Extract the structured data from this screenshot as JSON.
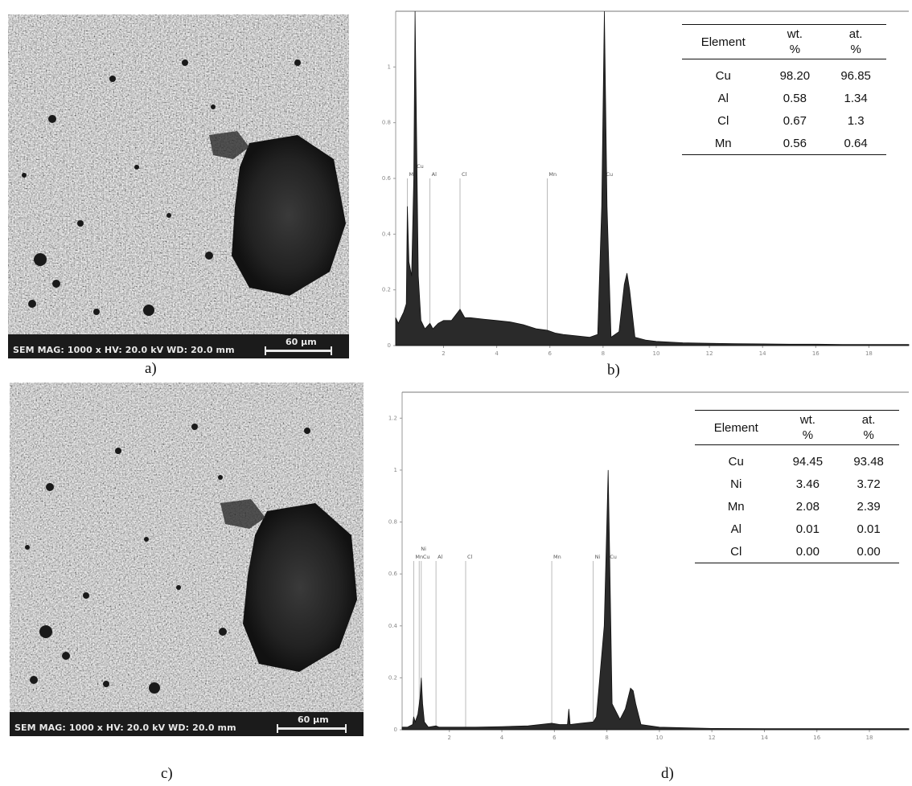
{
  "panels": {
    "a": {
      "caption": "a)",
      "info": "SEM  MAG: 1000 x  HV: 20.0 kV  WD: 20.0 mm",
      "scale": "60 µm"
    },
    "b": {
      "caption": "b)"
    },
    "c": {
      "caption": "c)",
      "info": "SEM  MAG: 1000 x  HV: 20.0 kV  WD: 20.0 mm",
      "scale": "60 µm"
    },
    "d": {
      "caption": "d)"
    }
  },
  "chart_data": [
    {
      "type": "line",
      "panel": "b",
      "x_ticks": [
        2,
        4,
        6,
        8,
        10,
        12,
        14,
        16,
        18
      ],
      "y_ticks": [
        0.0,
        0.2,
        0.4,
        0.6,
        0.8,
        1.0
      ],
      "xlim": [
        0.2,
        19.5
      ],
      "ylim": [
        0,
        1.2
      ],
      "element_markers": [
        {
          "label": "Mn",
          "x": 0.64
        },
        {
          "label": "Cu",
          "x": 0.93
        },
        {
          "label": "Al",
          "x": 1.49
        },
        {
          "label": "Cl",
          "x": 2.62
        },
        {
          "label": "Mn",
          "x": 5.9
        },
        {
          "label": "Cu",
          "x": 8.05
        }
      ],
      "spectrum": {
        "x": [
          0.2,
          0.3,
          0.4,
          0.5,
          0.6,
          0.64,
          0.7,
          0.8,
          0.88,
          0.93,
          0.98,
          1.05,
          1.15,
          1.3,
          1.49,
          1.6,
          1.8,
          2.0,
          2.3,
          2.62,
          2.8,
          3.0,
          3.5,
          4.0,
          4.5,
          5.0,
          5.5,
          5.9,
          6.2,
          6.5,
          7.0,
          7.5,
          7.8,
          7.95,
          8.05,
          8.15,
          8.3,
          8.6,
          8.8,
          8.9,
          9.0,
          9.2,
          9.6,
          10.0,
          11.0,
          12.0,
          13.0,
          14.0,
          15.0,
          16.0,
          17.0,
          18.0,
          19.0,
          19.5
        ],
        "y": [
          0.1,
          0.08,
          0.1,
          0.12,
          0.15,
          0.5,
          0.3,
          0.25,
          0.6,
          1.25,
          0.8,
          0.25,
          0.09,
          0.06,
          0.08,
          0.06,
          0.08,
          0.09,
          0.09,
          0.13,
          0.1,
          0.1,
          0.095,
          0.09,
          0.085,
          0.075,
          0.06,
          0.055,
          0.045,
          0.04,
          0.035,
          0.03,
          0.04,
          0.5,
          1.25,
          0.5,
          0.03,
          0.05,
          0.22,
          0.26,
          0.2,
          0.03,
          0.02,
          0.015,
          0.01,
          0.008,
          0.007,
          0.006,
          0.005,
          0.005,
          0.004,
          0.004,
          0.004,
          0.004
        ]
      },
      "table": {
        "headers": [
          "Element",
          "wt.\n%",
          "at.\n%"
        ],
        "rows": [
          [
            "Cu",
            "98.20",
            "96.85"
          ],
          [
            "Al",
            "0.58",
            "1.34"
          ],
          [
            "Cl",
            "0.67",
            "1.3"
          ],
          [
            "Mn",
            "0.56",
            "0.64"
          ]
        ]
      }
    },
    {
      "type": "line",
      "panel": "d",
      "x_ticks": [
        2,
        4,
        6,
        8,
        10,
        12,
        14,
        16,
        18
      ],
      "y_ticks": [
        0.0,
        0.2,
        0.4,
        0.6,
        0.8,
        1.0,
        1.2
      ],
      "xlim": [
        0.2,
        19.5
      ],
      "ylim": [
        0,
        1.3
      ],
      "element_markers": [
        {
          "label": "Mn",
          "x": 0.64
        },
        {
          "label": "Ni",
          "x": 0.85
        },
        {
          "label": "Cu",
          "x": 0.93
        },
        {
          "label": "Al",
          "x": 1.49
        },
        {
          "label": "Cl",
          "x": 2.62
        },
        {
          "label": "Mn",
          "x": 5.9
        },
        {
          "label": "Ni",
          "x": 7.48
        },
        {
          "label": "Cu",
          "x": 8.05
        }
      ],
      "spectrum": {
        "x": [
          0.2,
          0.4,
          0.6,
          0.64,
          0.7,
          0.8,
          0.88,
          0.93,
          0.98,
          1.05,
          1.2,
          1.49,
          1.6,
          2.0,
          3.0,
          4.0,
          5.0,
          5.9,
          6.2,
          6.5,
          6.55,
          6.6,
          7.0,
          7.48,
          7.6,
          7.9,
          8.0,
          8.05,
          8.1,
          8.2,
          8.5,
          8.7,
          8.9,
          9.0,
          9.1,
          9.3,
          10.0,
          12.0,
          14.0,
          16.0,
          18.0,
          19.5
        ],
        "y": [
          0.01,
          0.01,
          0.02,
          0.05,
          0.03,
          0.06,
          0.12,
          0.2,
          0.1,
          0.03,
          0.01,
          0.015,
          0.01,
          0.01,
          0.01,
          0.012,
          0.015,
          0.025,
          0.02,
          0.02,
          0.08,
          0.02,
          0.025,
          0.03,
          0.05,
          0.4,
          0.8,
          1.0,
          0.7,
          0.1,
          0.04,
          0.08,
          0.16,
          0.15,
          0.1,
          0.02,
          0.01,
          0.005,
          0.004,
          0.004,
          0.004,
          0.004
        ]
      },
      "table": {
        "headers": [
          "Element",
          "wt.\n%",
          "at.\n%"
        ],
        "rows": [
          [
            "Cu",
            "94.45",
            "93.48"
          ],
          [
            "Ni",
            "3.46",
            "3.72"
          ],
          [
            "Mn",
            "2.08",
            "2.39"
          ],
          [
            "Al",
            "0.01",
            "0.01"
          ],
          [
            "Cl",
            "0.00",
            "0.00"
          ]
        ]
      }
    }
  ]
}
